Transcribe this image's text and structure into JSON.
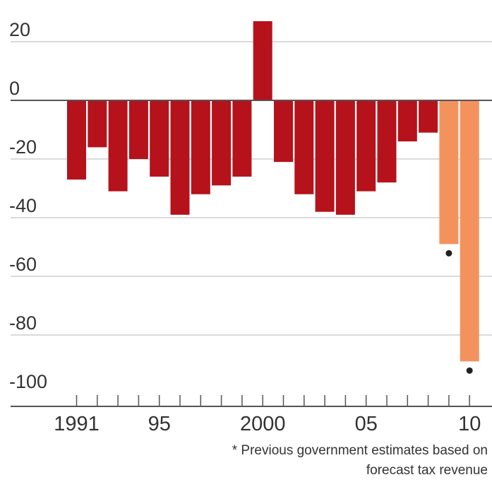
{
  "chart_data": {
    "type": "bar",
    "categories": [
      "1991",
      "1992",
      "1993",
      "1994",
      "1995",
      "1996",
      "1997",
      "1998",
      "1999",
      "2000",
      "2001",
      "2002",
      "2003",
      "2004",
      "2005",
      "2006",
      "2007",
      "2008",
      "2009",
      "2010"
    ],
    "x_tick_labels": [
      {
        "category": "1991",
        "label": "1991"
      },
      {
        "category": "1995",
        "label": "95"
      },
      {
        "category": "2000",
        "label": "2000"
      },
      {
        "category": "2005",
        "label": "05"
      },
      {
        "category": "2010",
        "label": "10"
      }
    ],
    "values": [
      -27,
      -16,
      -31,
      -20,
      -26,
      -39,
      -32,
      -29,
      -26,
      27,
      -21,
      -32,
      -38,
      -39,
      -31,
      -28,
      -14,
      -11,
      -49,
      -89
    ],
    "estimate_flags": [
      false,
      false,
      false,
      false,
      false,
      false,
      false,
      false,
      false,
      false,
      false,
      false,
      false,
      false,
      false,
      false,
      false,
      false,
      true,
      true
    ],
    "ylim": [
      -100,
      20
    ],
    "yticks": [
      "20",
      "0",
      "-20",
      "-40",
      "-60",
      "-80",
      "-100"
    ],
    "grid": true,
    "colors": {
      "actual": "#b5121b",
      "estimate": "#f4925e",
      "grid": "#cfcfcf",
      "baseline": "#555555",
      "marker": "#222222"
    },
    "footnote": {
      "line1": "* Previous government estimates based on",
      "line2": "forecast tax revenue"
    }
  }
}
